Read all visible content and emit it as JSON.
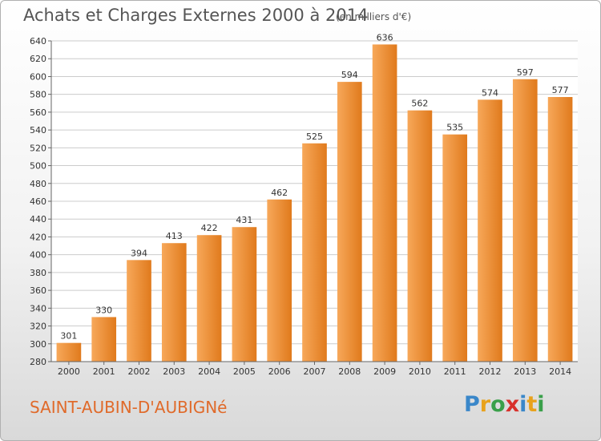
{
  "title": "Achats et Charges Externes 2000 à 2014",
  "subtitle": "(en milliers d'€)",
  "commune": "SAINT-AUBIN-D'AUBIGNé",
  "logo": {
    "text": "Proxiti",
    "letters": [
      {
        "ch": "P",
        "color": "#3a87c9"
      },
      {
        "ch": "r",
        "color": "#e8a21c"
      },
      {
        "ch": "o",
        "color": "#3aa04a"
      },
      {
        "ch": "x",
        "color": "#d8302a"
      },
      {
        "ch": "i",
        "color": "#3a87c9"
      },
      {
        "ch": "t",
        "color": "#e8a21c"
      },
      {
        "ch": "i",
        "color": "#3aa04a"
      }
    ]
  },
  "colors": {
    "bar_light": "#f7a85a",
    "bar_dark": "#e07a1c",
    "grid": "#cccccc",
    "axis": "#666666",
    "text": "#333333"
  },
  "chart_data": {
    "type": "bar",
    "categories": [
      "2000",
      "2001",
      "2002",
      "2003",
      "2004",
      "2005",
      "2006",
      "2007",
      "2008",
      "2009",
      "2010",
      "2011",
      "2012",
      "2013",
      "2014"
    ],
    "values": [
      301,
      330,
      394,
      413,
      422,
      431,
      462,
      525,
      594,
      636,
      562,
      535,
      574,
      597,
      577
    ],
    "ylim": [
      280,
      640
    ],
    "yticks": [
      280,
      300,
      320,
      340,
      360,
      380,
      400,
      420,
      440,
      460,
      480,
      500,
      520,
      540,
      560,
      580,
      600,
      620,
      640
    ],
    "grid": true,
    "data_labels": true
  }
}
